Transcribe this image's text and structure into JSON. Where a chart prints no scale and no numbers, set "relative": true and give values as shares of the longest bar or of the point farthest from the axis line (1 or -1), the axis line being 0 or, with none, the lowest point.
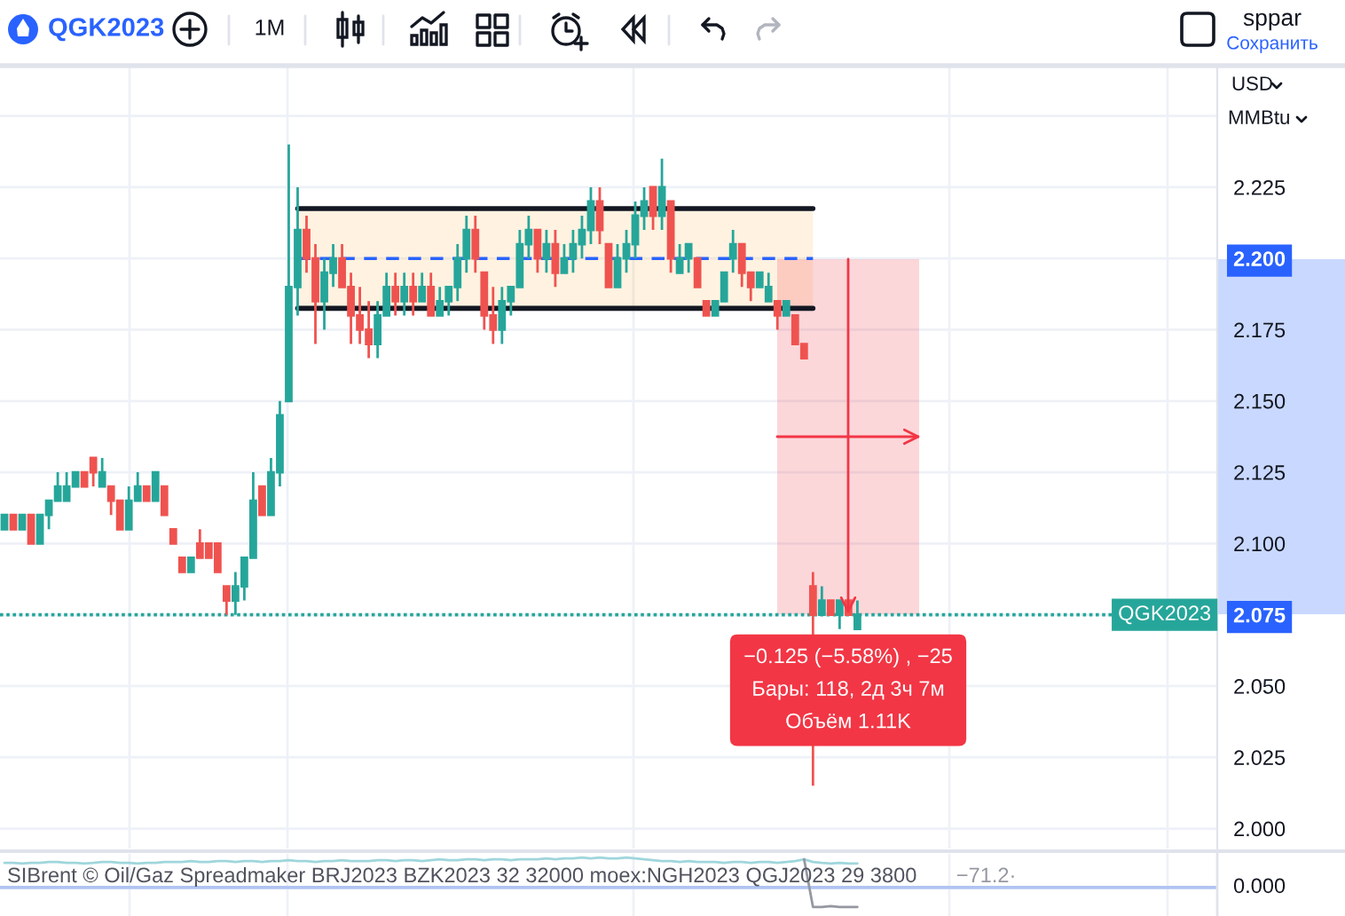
{
  "chart_data": [
    {
      "type": "candlestick",
      "title": "QGK2023",
      "tick_labels": "y",
      "grid": true,
      "categories": [
        null,
        null,
        null,
        null,
        null,
        null,
        null,
        null,
        null,
        null,
        null,
        null,
        null,
        null,
        null,
        null,
        null,
        null,
        null,
        null,
        null,
        null,
        null,
        null,
        null,
        null,
        null,
        null,
        null,
        null,
        null,
        null,
        null,
        null,
        null,
        null,
        null,
        null,
        null,
        null,
        null,
        null,
        null,
        null,
        null,
        null,
        null,
        null,
        null,
        null,
        null,
        null,
        null,
        null,
        null,
        null,
        null,
        null,
        null,
        null,
        null,
        null,
        null,
        null,
        null,
        null,
        null,
        null,
        null,
        null,
        null,
        null,
        null,
        null,
        null,
        null,
        null,
        null,
        null,
        null,
        null,
        null,
        null,
        null,
        null,
        null,
        null,
        null,
        null,
        null,
        null,
        null,
        null,
        null,
        null,
        null,
        null
      ],
      "ohlc": [
        [
          2.105,
          2.11,
          2.105,
          2.11
        ],
        [
          2.11,
          2.11,
          2.105,
          2.105
        ],
        [
          2.105,
          2.11,
          2.105,
          2.11
        ],
        [
          2.11,
          2.11,
          2.1,
          2.1
        ],
        [
          2.1,
          2.11,
          2.1,
          2.11
        ],
        [
          2.11,
          2.115,
          2.105,
          2.115
        ],
        [
          2.115,
          2.125,
          2.115,
          2.12
        ],
        [
          2.115,
          2.125,
          2.115,
          2.12
        ],
        [
          2.12,
          2.125,
          2.12,
          2.125
        ],
        [
          2.125,
          2.125,
          2.12,
          2.12
        ],
        [
          2.13,
          2.13,
          2.12,
          2.125
        ],
        [
          2.12,
          2.13,
          2.12,
          2.125
        ],
        [
          2.12,
          2.12,
          2.11,
          2.115
        ],
        [
          2.115,
          2.115,
          2.105,
          2.105
        ],
        [
          2.105,
          2.12,
          2.105,
          2.115
        ],
        [
          2.115,
          2.125,
          2.115,
          2.12
        ],
        [
          2.12,
          2.12,
          2.115,
          2.115
        ],
        [
          2.115,
          2.125,
          2.115,
          2.125
        ],
        [
          2.12,
          2.12,
          2.11,
          2.11
        ],
        [
          2.105,
          2.105,
          2.1,
          2.1
        ],
        [
          2.095,
          2.095,
          2.09,
          2.09
        ],
        [
          2.09,
          2.095,
          2.09,
          2.095
        ],
        [
          2.1,
          2.105,
          2.095,
          2.095
        ],
        [
          2.1,
          2.1,
          2.095,
          2.095
        ],
        [
          2.1,
          2.1,
          2.09,
          2.09
        ],
        [
          2.085,
          2.085,
          2.075,
          2.08
        ],
        [
          2.08,
          2.09,
          2.075,
          2.085
        ],
        [
          2.085,
          2.095,
          2.08,
          2.095
        ],
        [
          2.095,
          2.125,
          2.095,
          2.115
        ],
        [
          2.12,
          2.12,
          2.11,
          2.11
        ],
        [
          2.11,
          2.13,
          2.11,
          2.125
        ],
        [
          2.125,
          2.15,
          2.12,
          2.145
        ],
        [
          2.15,
          2.24,
          2.15,
          2.19
        ],
        [
          2.19,
          2.225,
          2.18,
          2.21
        ],
        [
          2.21,
          2.215,
          2.195,
          2.2
        ],
        [
          2.2,
          2.205,
          2.17,
          2.185
        ],
        [
          2.185,
          2.2,
          2.175,
          2.195
        ],
        [
          2.195,
          2.205,
          2.19,
          2.2
        ],
        [
          2.2,
          2.205,
          2.19,
          2.19
        ],
        [
          2.19,
          2.195,
          2.17,
          2.18
        ],
        [
          2.18,
          2.19,
          2.17,
          2.175
        ],
        [
          2.175,
          2.185,
          2.165,
          2.17
        ],
        [
          2.17,
          2.185,
          2.165,
          2.18
        ],
        [
          2.18,
          2.195,
          2.18,
          2.19
        ],
        [
          2.19,
          2.195,
          2.18,
          2.185
        ],
        [
          2.185,
          2.195,
          2.18,
          2.19
        ],
        [
          2.19,
          2.195,
          2.18,
          2.185
        ],
        [
          2.185,
          2.195,
          2.185,
          2.19
        ],
        [
          2.19,
          2.195,
          2.18,
          2.18
        ],
        [
          2.18,
          2.19,
          2.18,
          2.185
        ],
        [
          2.185,
          2.19,
          2.18,
          2.19
        ],
        [
          2.19,
          2.205,
          2.185,
          2.2
        ],
        [
          2.2,
          2.215,
          2.195,
          2.21
        ],
        [
          2.21,
          2.215,
          2.195,
          2.2
        ],
        [
          2.195,
          2.195,
          2.175,
          2.18
        ],
        [
          2.18,
          2.19,
          2.17,
          2.175
        ],
        [
          2.175,
          2.19,
          2.17,
          2.185
        ],
        [
          2.185,
          2.19,
          2.18,
          2.19
        ],
        [
          2.19,
          2.21,
          2.19,
          2.205
        ],
        [
          2.205,
          2.215,
          2.2,
          2.21
        ],
        [
          2.21,
          2.21,
          2.195,
          2.2
        ],
        [
          2.2,
          2.21,
          2.195,
          2.205
        ],
        [
          2.205,
          2.21,
          2.19,
          2.195
        ],
        [
          2.195,
          2.205,
          2.195,
          2.2
        ],
        [
          2.2,
          2.21,
          2.195,
          2.205
        ],
        [
          2.205,
          2.215,
          2.2,
          2.21
        ],
        [
          2.21,
          2.225,
          2.205,
          2.22
        ],
        [
          2.22,
          2.225,
          2.205,
          2.21
        ],
        [
          2.205,
          2.205,
          2.19,
          2.19
        ],
        [
          2.19,
          2.205,
          2.19,
          2.2
        ],
        [
          2.2,
          2.21,
          2.195,
          2.205
        ],
        [
          2.205,
          2.22,
          2.2,
          2.215
        ],
        [
          2.215,
          2.225,
          2.21,
          2.22
        ],
        [
          2.225,
          2.225,
          2.21,
          2.215
        ],
        [
          2.215,
          2.235,
          2.21,
          2.225
        ],
        [
          2.22,
          2.22,
          2.195,
          2.2
        ],
        [
          2.195,
          2.205,
          2.195,
          2.2
        ],
        [
          2.2,
          2.205,
          2.195,
          2.205
        ],
        [
          2.2,
          2.2,
          2.19,
          2.19
        ],
        [
          2.185,
          2.185,
          2.18,
          2.18
        ],
        [
          2.18,
          2.185,
          2.18,
          2.185
        ],
        [
          2.185,
          2.195,
          2.185,
          2.195
        ],
        [
          2.2,
          2.21,
          2.195,
          2.205
        ],
        [
          2.205,
          2.205,
          2.19,
          2.195
        ],
        [
          2.195,
          2.195,
          2.185,
          2.19
        ],
        [
          2.19,
          2.195,
          2.19,
          2.195
        ],
        [
          2.185,
          2.195,
          2.185,
          2.19
        ],
        [
          2.185,
          2.185,
          2.175,
          2.18
        ],
        [
          2.18,
          2.185,
          2.18,
          2.185
        ],
        [
          2.18,
          2.18,
          2.17,
          2.17
        ],
        [
          2.17,
          2.17,
          2.165,
          2.165
        ],
        [
          2.085,
          2.09,
          2.015,
          2.075
        ],
        [
          2.075,
          2.085,
          2.075,
          2.08
        ],
        [
          2.08,
          2.08,
          2.075,
          2.075
        ],
        [
          2.075,
          2.08,
          2.07,
          2.08
        ],
        [
          2.08,
          2.08,
          2.075,
          2.075
        ],
        [
          2.07,
          2.08,
          2.07,
          2.075
        ]
      ],
      "colors": [
        "#26a69a",
        "#ef5350",
        "#26a69a",
        "#ef5350",
        "#26a69a",
        "#26a69a",
        "#26a69a",
        "#26a69a",
        "#26a69a",
        "#ef5350",
        "#ef5350",
        "#26a69a",
        "#ef5350",
        "#ef5350",
        "#26a69a",
        "#26a69a",
        "#ef5350",
        "#26a69a",
        "#ef5350",
        "#ef5350",
        "#ef5350",
        "#26a69a",
        "#ef5350",
        "#ef5350",
        "#ef5350",
        "#ef5350",
        "#26a69a",
        "#26a69a",
        "#26a69a",
        "#ef5350",
        "#26a69a",
        "#26a69a",
        "#26a69a",
        "#26a69a",
        "#ef5350",
        "#ef5350",
        "#26a69a",
        "#26a69a",
        "#ef5350",
        "#ef5350",
        "#ef5350",
        "#ef5350",
        "#26a69a",
        "#26a69a",
        "#ef5350",
        "#26a69a",
        "#ef5350",
        "#26a69a",
        "#ef5350",
        "#26a69a",
        "#26a69a",
        "#26a69a",
        "#26a69a",
        "#ef5350",
        "#ef5350",
        "#ef5350",
        "#26a69a",
        "#26a69a",
        "#26a69a",
        "#26a69a",
        "#ef5350",
        "#26a69a",
        "#ef5350",
        "#26a69a",
        "#26a69a",
        "#26a69a",
        "#26a69a",
        "#ef5350",
        "#ef5350",
        "#26a69a",
        "#26a69a",
        "#26a69a",
        "#26a69a",
        "#ef5350",
        "#26a69a",
        "#ef5350",
        "#26a69a",
        "#26a69a",
        "#ef5350",
        "#ef5350",
        "#26a69a",
        "#26a69a",
        "#26a69a",
        "#ef5350",
        "#ef5350",
        "#26a69a",
        "#26a69a",
        "#ef5350",
        "#26a69a",
        "#ef5350",
        "#ef5350",
        "#ef5350",
        "#26a69a",
        "#ef5350",
        "#26a69a",
        "#ef5350",
        "#26a69a"
      ],
      "series": [
        {
          "type": "line",
          "color": "#131722",
          "values": [
            null,
            null,
            null,
            null,
            null,
            null,
            null,
            null,
            null,
            null,
            null,
            null,
            null,
            null,
            null,
            null,
            null,
            null,
            null,
            null,
            null,
            null,
            null,
            null,
            null,
            null,
            null,
            null,
            null,
            null,
            null,
            null,
            null,
            2.2175,
            2.2175,
            2.2175,
            2.2175,
            2.2175,
            2.2175,
            2.2175,
            2.2175,
            2.2175,
            2.2175,
            2.2175,
            2.2175,
            2.2175,
            2.2175,
            2.2175,
            2.2175,
            2.2175,
            2.2175,
            2.2175,
            2.2175,
            2.2175,
            2.2175,
            2.2175,
            2.2175,
            2.2175,
            2.2175,
            2.2175,
            2.2175,
            2.2175,
            2.2175,
            2.2175,
            2.2175,
            2.2175,
            2.2175,
            2.2175,
            2.2175,
            2.2175,
            2.2175,
            2.2175,
            2.2175,
            2.2175,
            2.2175,
            2.2175,
            2.2175,
            2.2175,
            2.2175,
            2.2175,
            2.2175,
            2.2175,
            2.2175,
            2.2175,
            2.2175,
            2.2175,
            2.2175,
            2.2175,
            2.2175,
            2.2175,
            2.2175,
            2.2175,
            null,
            null,
            null,
            null,
            null
          ]
        },
        {
          "type": "line",
          "color": "#131722",
          "values": [
            null,
            null,
            null,
            null,
            null,
            null,
            null,
            null,
            null,
            null,
            null,
            null,
            null,
            null,
            null,
            null,
            null,
            null,
            null,
            null,
            null,
            null,
            null,
            null,
            null,
            null,
            null,
            null,
            null,
            null,
            null,
            null,
            null,
            2.1825,
            2.1825,
            2.1825,
            2.1825,
            2.1825,
            2.1825,
            2.1825,
            2.1825,
            2.1825,
            2.1825,
            2.1825,
            2.1825,
            2.1825,
            2.1825,
            2.1825,
            2.1825,
            2.1825,
            2.1825,
            2.1825,
            2.1825,
            2.1825,
            2.1825,
            2.1825,
            2.1825,
            2.1825,
            2.1825,
            2.1825,
            2.1825,
            2.1825,
            2.1825,
            2.1825,
            2.1825,
            2.1825,
            2.1825,
            2.1825,
            2.1825,
            2.1825,
            2.1825,
            2.1825,
            2.1825,
            2.1825,
            2.1825,
            2.1825,
            2.1825,
            2.1825,
            2.1825,
            2.1825,
            2.1825,
            2.1825,
            2.1825,
            2.1825,
            2.1825,
            2.1825,
            2.1825,
            2.1825,
            2.1825,
            2.1825,
            2.1825,
            2.1825,
            null,
            null,
            null,
            null,
            null
          ]
        },
        {
          "type": "line",
          "color": "#2962ff",
          "line_style": "dashed",
          "values": [
            null,
            null,
            null,
            null,
            null,
            null,
            null,
            null,
            null,
            null,
            null,
            null,
            null,
            null,
            null,
            null,
            null,
            null,
            null,
            null,
            null,
            null,
            null,
            null,
            null,
            null,
            null,
            null,
            null,
            null,
            null,
            null,
            null,
            2.2,
            2.2,
            2.2,
            2.2,
            2.2,
            2.2,
            2.2,
            2.2,
            2.2,
            2.2,
            2.2,
            2.2,
            2.2,
            2.2,
            2.2,
            2.2,
            2.2,
            2.2,
            2.2,
            2.2,
            2.2,
            2.2,
            2.2,
            2.2,
            2.2,
            2.2,
            2.2,
            2.2,
            2.2,
            2.2,
            2.2,
            2.2,
            2.2,
            2.2,
            2.2,
            2.2,
            2.2,
            2.2,
            2.2,
            2.2,
            2.2,
            2.2,
            2.2,
            2.2,
            2.2,
            2.2,
            2.2,
            2.2,
            2.2,
            2.2,
            2.2,
            2.2,
            2.2,
            2.2,
            2.2,
            2.2,
            2.2,
            2.2,
            2.2,
            null,
            null,
            null,
            null,
            null
          ]
        }
      ],
      "ylim": [
        1.993,
        2.267
      ],
      "yticks": [
        {
          "value": 2.0,
          "label": "2.000"
        },
        2.025,
        {
          "value": 2.05,
          "label": "2.050"
        },
        2.075,
        {
          "value": 2.1,
          "label": "2.100"
        },
        2.125,
        {
          "value": 2.15,
          "label": "2.150"
        },
        2.175,
        {
          "value": 2.2,
          "label": "2.200"
        },
        2.225,
        {
          "value": 2.25,
          "label": null
        }
      ],
      "ref_lines": [
        {
          "axis": "y",
          "value": 2.075,
          "label": "QGK2023",
          "color": "#26a69a",
          "line_style": "dotted"
        }
      ],
      "annotations": [
        "−0.125 (−5.58%) , −25\nБары: 118, 2д 3ч 7м\nОбъём 1.11K",
        "1M",
        "sppar",
        "Сохранить",
        "USD",
        "MMBtu"
      ]
    },
    {
      "type": "line",
      "relative": true,
      "tick_labels": false,
      "title": "SIBrent © Oil/Gaz Spreadmaker BRJ2023 BZK2023 32 32000 moex:NGH2023 QGJ2023 29 3800",
      "categories": [
        null,
        null,
        null,
        null,
        null,
        null,
        null,
        null,
        null,
        null,
        null,
        null,
        null,
        null,
        null,
        null,
        null,
        null,
        null,
        null,
        null,
        null,
        null,
        null,
        null,
        null,
        null,
        null,
        null,
        null,
        null,
        null,
        null,
        null,
        null,
        null,
        null,
        null,
        null,
        null,
        null,
        null,
        null,
        null,
        null,
        null,
        null,
        null,
        null,
        null,
        null,
        null,
        null,
        null,
        null,
        null,
        null,
        null,
        null,
        null,
        null,
        null,
        null,
        null,
        null,
        null,
        null,
        null,
        null,
        null,
        null,
        null,
        null,
        null,
        null,
        null,
        null,
        null,
        null,
        null,
        null,
        null,
        null,
        null,
        null,
        null,
        null,
        null,
        null,
        null,
        null,
        null,
        null,
        null,
        null,
        null,
        null
      ],
      "series": [
        {
          "color": "#9fd6dc",
          "values": [
            0.82,
            0.82,
            0.8,
            0.82,
            0.82,
            0.85,
            0.85,
            0.82,
            0.82,
            0.8,
            0.82,
            0.85,
            0.85,
            0.82,
            0.82,
            0.8,
            0.82,
            0.82,
            0.85,
            0.85,
            0.85,
            0.88,
            0.85,
            0.85,
            0.88,
            0.88,
            0.85,
            0.88,
            0.88,
            0.85,
            0.88,
            0.88,
            0.91,
            0.88,
            0.88,
            0.85,
            0.88,
            0.88,
            0.91,
            0.88,
            0.88,
            0.88,
            0.91,
            0.91,
            0.88,
            0.91,
            0.91,
            0.88,
            0.91,
            0.94,
            0.91,
            0.91,
            0.94,
            0.94,
            0.91,
            0.94,
            0.94,
            0.91,
            0.94,
            0.94,
            0.94,
            0.97,
            0.94,
            0.97,
            0.97,
            1.0,
            0.97,
            1.0,
            0.97,
            0.97,
            1.0,
            0.97,
            0.94,
            0.91,
            0.88,
            0.88,
            0.85,
            0.88,
            0.85,
            0.85,
            0.85,
            0.82,
            0.85,
            0.85,
            0.82,
            0.85,
            0.85,
            0.82,
            0.85,
            0.88,
            0.94,
            0.85,
            0.82,
            0.8,
            0.82,
            0.8,
            0.8
          ]
        },
        {
          "color": "#9598a1",
          "values": [
            null,
            null,
            null,
            null,
            null,
            null,
            null,
            null,
            null,
            null,
            null,
            null,
            null,
            null,
            null,
            null,
            null,
            null,
            null,
            null,
            null,
            null,
            null,
            null,
            null,
            null,
            null,
            null,
            null,
            null,
            null,
            null,
            null,
            null,
            null,
            null,
            null,
            null,
            null,
            null,
            null,
            null,
            null,
            null,
            null,
            null,
            null,
            null,
            null,
            null,
            null,
            null,
            null,
            null,
            null,
            null,
            null,
            null,
            null,
            null,
            null,
            null,
            null,
            null,
            null,
            null,
            null,
            null,
            null,
            null,
            null,
            null,
            null,
            null,
            null,
            null,
            null,
            null,
            null,
            null,
            null,
            null,
            null,
            null,
            null,
            null,
            null,
            null,
            null,
            null,
            0.94,
            -0.65,
            -0.65,
            -0.62,
            -0.65,
            -0.65,
            -0.65
          ]
        }
      ],
      "ref_lines": [
        {
          "axis": "y",
          "value": 0,
          "label": "0.000",
          "color": "#b0c4f2"
        }
      ],
      "annotations": [
        "−71.2·"
      ]
    }
  ]
}
